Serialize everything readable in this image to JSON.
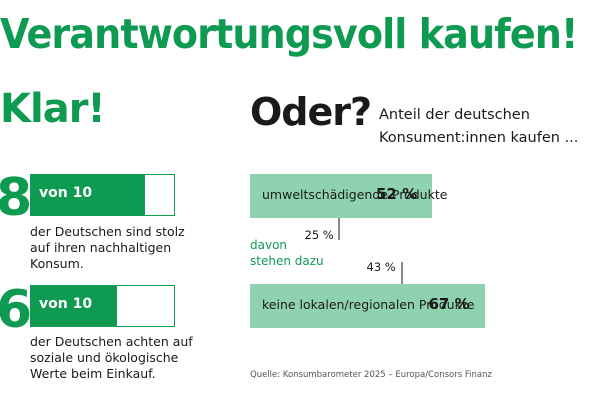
{
  "headline": "Verantwortungsvoll kaufen!",
  "left": {
    "heading": "Klar!",
    "items": [
      {
        "number": "8",
        "scale_label": "von 10",
        "value": 8,
        "max": 10,
        "statement_lines": [
          "der Deutschen sind stolz",
          "auf ihren nachhaltigen",
          "Konsum."
        ]
      },
      {
        "number": "6",
        "scale_label": "von 10",
        "value": 6,
        "max": 10,
        "statement_lines": [
          "der Deutschen achten auf",
          "soziale und ökologische",
          "Werte beim Einkauf."
        ]
      }
    ]
  },
  "right": {
    "heading": "Oder?",
    "subtitle_lines": [
      "Anteil der deutschen",
      "Konsument:innen kaufen ..."
    ],
    "davon_lines": [
      "davon",
      "stehen dazu"
    ]
  },
  "chart_data": {
    "type": "bar",
    "orientation": "horizontal",
    "categories": [
      "umweltschädigende Produkte",
      "keine lokalen/regionalen Produkte"
    ],
    "values": [
      52,
      67
    ],
    "value_labels": [
      "52 %",
      "67 %"
    ],
    "sub_values": [
      25,
      43
    ],
    "sub_value_labels": [
      "25 %",
      "43 %"
    ],
    "xlim": [
      0,
      100
    ],
    "unit": "%"
  },
  "source": "Quelle: Konsumbarometer 2025 – Europa/Consors Finanz",
  "colors": {
    "brand_green": "#0f9a52",
    "bar_light_green": "#8fd2b0",
    "text": "#1a1a1a"
  }
}
